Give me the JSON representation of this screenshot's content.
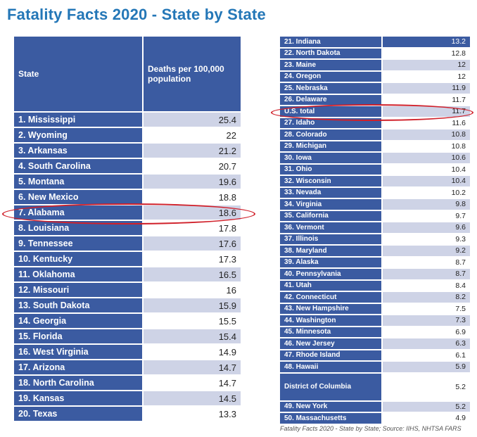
{
  "title": "Fatality Facts 2020 - State by State",
  "left_table": {
    "header_state": "State",
    "header_value": "Deaths per 100,000 population",
    "rows": [
      {
        "state": "1. Mississippi",
        "value": "25.4"
      },
      {
        "state": "2. Wyoming",
        "value": "22"
      },
      {
        "state": "3. Arkansas",
        "value": "21.2"
      },
      {
        "state": "4. South Carolina",
        "value": "20.7"
      },
      {
        "state": "5. Montana",
        "value": "19.6"
      },
      {
        "state": "6. New Mexico",
        "value": "18.8"
      },
      {
        "state": "7. Alabama",
        "value": "18.6"
      },
      {
        "state": "8. Louisiana",
        "value": "17.8"
      },
      {
        "state": "9. Tennessee",
        "value": "17.6"
      },
      {
        "state": "10. Kentucky",
        "value": "17.3"
      },
      {
        "state": "11. Oklahoma",
        "value": "16.5"
      },
      {
        "state": "12. Missouri",
        "value": "16"
      },
      {
        "state": "13. South Dakota",
        "value": "15.9"
      },
      {
        "state": "14. Georgia",
        "value": "15.5"
      },
      {
        "state": "15. Florida",
        "value": "15.4"
      },
      {
        "state": "16. West Virginia",
        "value": "14.9"
      },
      {
        "state": "17. Arizona",
        "value": "14.7"
      },
      {
        "state": "18. North Carolina",
        "value": "14.7"
      },
      {
        "state": "19. Kansas",
        "value": "14.5"
      },
      {
        "state": "20. Texas",
        "value": "13.3"
      }
    ]
  },
  "right_table": {
    "rows": [
      {
        "state": "21. Indiana",
        "value": "13.2"
      },
      {
        "state": "22. North Dakota",
        "value": "12.8"
      },
      {
        "state": "23. Maine",
        "value": "12"
      },
      {
        "state": "24. Oregon",
        "value": "12"
      },
      {
        "state": "25. Nebraska",
        "value": "11.9"
      },
      {
        "state": "26. Delaware",
        "value": "11.7"
      },
      {
        "state": "U.S. total",
        "value": "11.7"
      },
      {
        "state": "27. Idaho",
        "value": "11.6"
      },
      {
        "state": "28. Colorado",
        "value": "10.8"
      },
      {
        "state": "29. Michigan",
        "value": "10.8"
      },
      {
        "state": "30. Iowa",
        "value": "10.6"
      },
      {
        "state": "31. Ohio",
        "value": "10.4"
      },
      {
        "state": "32. Wisconsin",
        "value": "10.4"
      },
      {
        "state": "33. Nevada",
        "value": "10.2"
      },
      {
        "state": "34. Virginia",
        "value": "9.8"
      },
      {
        "state": "35. California",
        "value": "9.7"
      },
      {
        "state": "36. Vermont",
        "value": "9.6"
      },
      {
        "state": "37. Illinois",
        "value": "9.3"
      },
      {
        "state": "38. Maryland",
        "value": "9.2"
      },
      {
        "state": "39. Alaska",
        "value": "8.7"
      },
      {
        "state": "40. Pennsylvania",
        "value": "8.7"
      },
      {
        "state": "41. Utah",
        "value": "8.4"
      },
      {
        "state": "42. Connecticut",
        "value": "8.2"
      },
      {
        "state": "43. New Hampshire",
        "value": "7.5"
      },
      {
        "state": "44. Washington",
        "value": "7.3"
      },
      {
        "state": "45. Minnesota",
        "value": "6.9"
      },
      {
        "state": "46. New Jersey",
        "value": "6.3"
      },
      {
        "state": "47. Rhode Island",
        "value": "6.1"
      },
      {
        "state": "48. Hawaii",
        "value": "5.9"
      },
      {
        "state": "District of Columbia",
        "value": "5.2"
      },
      {
        "state": "49. New York",
        "value": "5.2"
      },
      {
        "state": "50. Massachusetts",
        "value": "4.9"
      }
    ]
  },
  "source": "Fatality Facts 2020 - State by State; Source: IIHS, NHTSA FARS",
  "colors": {
    "header_blue": "#3b5ba1",
    "stripe": "#ced3e6",
    "title_blue": "#2477b7",
    "highlight_red": "#d0202a"
  }
}
